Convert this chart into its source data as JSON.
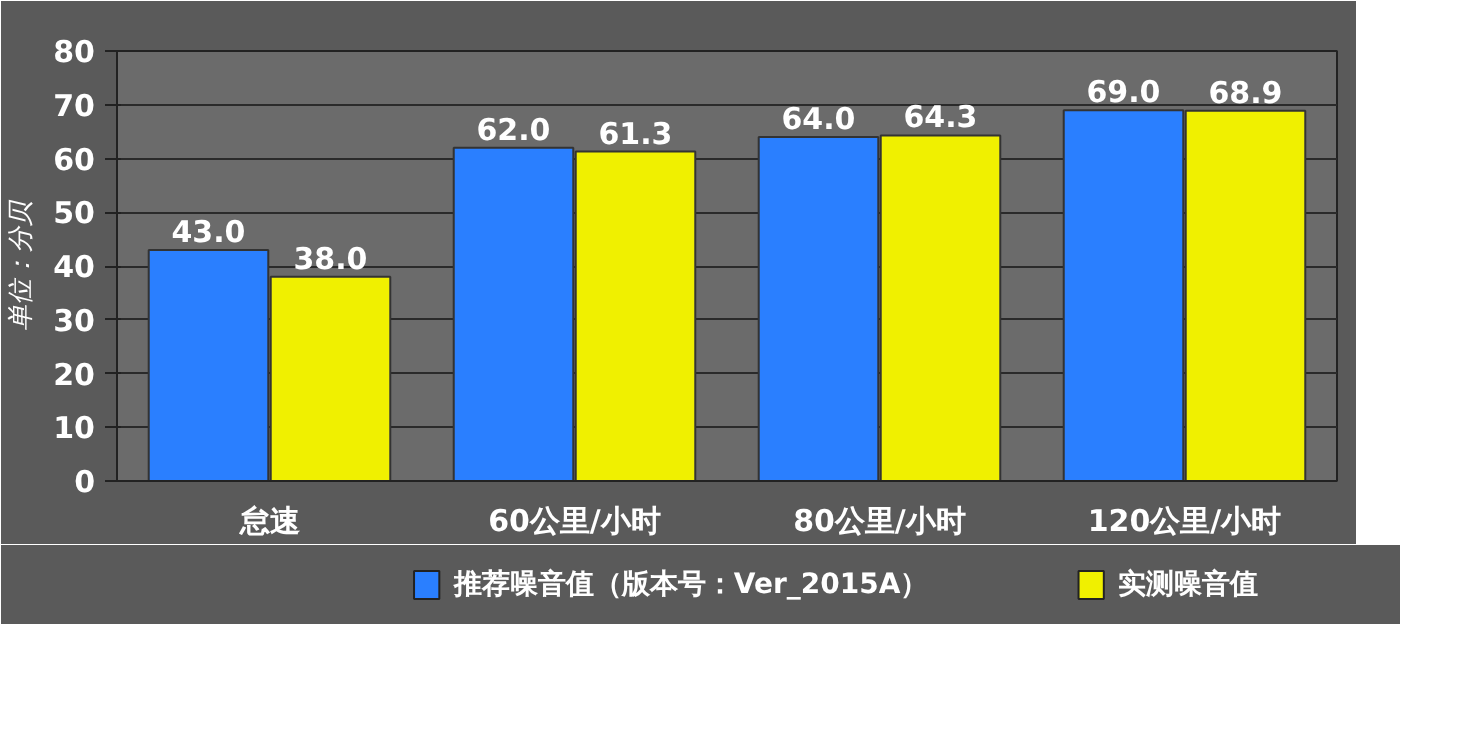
{
  "chart_data": {
    "type": "bar",
    "ylabel": "单位：分贝",
    "categories": [
      "怠速",
      "60公里/小时",
      "80公里/小时",
      "120公里/小时"
    ],
    "series": [
      {
        "name": "推荐噪音值（版本号：Ver_2015A）",
        "color": "#2a7fff",
        "values": [
          43.0,
          62.0,
          64.0,
          69.0
        ],
        "value_labels": [
          "43.0",
          "62.0",
          "64.0",
          "69.0"
        ]
      },
      {
        "name": "实测噪音值",
        "color": "#f0f000",
        "values": [
          38.0,
          61.3,
          64.3,
          68.9
        ],
        "value_labels": [
          "38.0",
          "61.3",
          "64.3",
          "68.9"
        ]
      }
    ],
    "ylim": [
      0,
      80
    ],
    "yticks": [
      0,
      10,
      20,
      30,
      40,
      50,
      60,
      70,
      80
    ],
    "grid": "y",
    "legend": "bottom",
    "data_labels": true
  }
}
